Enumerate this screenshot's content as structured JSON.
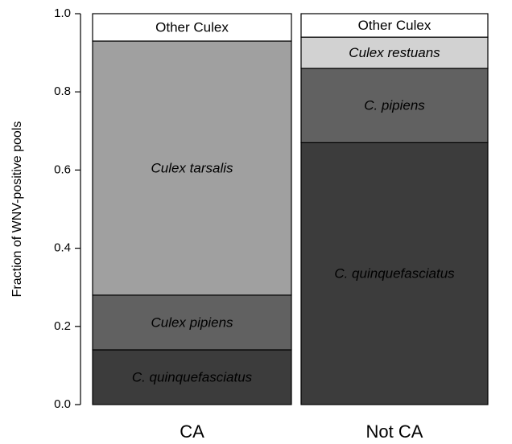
{
  "chart_data": {
    "type": "stacked_bar",
    "ylabel": "Fraction of WNV-positive pools",
    "categories": [
      "CA",
      "Not CA"
    ],
    "ylim": [
      0,
      1
    ],
    "yticks": [
      {
        "value": 0,
        "label": "0.0"
      },
      0.2,
      0.4,
      0.6,
      0.8,
      {
        "value": 1,
        "label": "1.0"
      }
    ],
    "series": [
      {
        "colors": [
          "#3c3c3c",
          "#3c3c3c"
        ],
        "values": [
          0.14,
          0.67
        ],
        "segment_labels": [
          "C. quinquefasciatus",
          "C. quinquefasciatus"
        ]
      },
      {
        "colors": [
          "#616161",
          "#616161"
        ],
        "values": [
          0.14,
          0.19
        ],
        "segment_labels": [
          "Culex pipiens",
          "C. pipiens"
        ]
      },
      {
        "colors": [
          "#a0a0a0",
          "#d2d2d2"
        ],
        "values": [
          0.65,
          0.08
        ],
        "segment_labels": [
          "Culex tarsalis",
          "Culex restuans"
        ]
      },
      {
        "colors": [
          "#ffffff",
          "#ffffff"
        ],
        "values": [
          0.07,
          0.06
        ],
        "segment_labels": [
          "Other Culex",
          "Other Culex"
        ]
      }
    ]
  }
}
